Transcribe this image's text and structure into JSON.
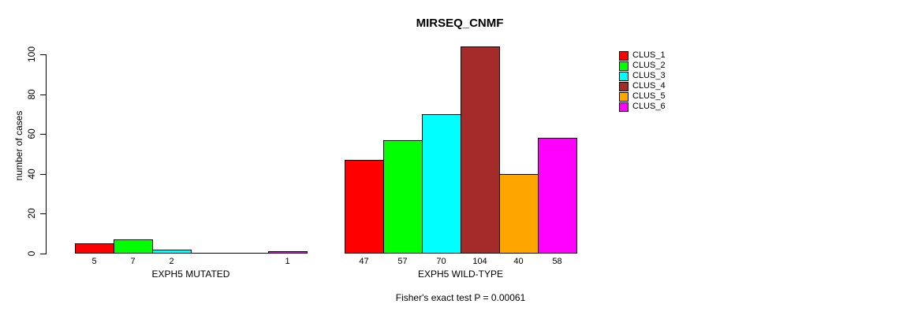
{
  "chart_data": {
    "type": "bar",
    "title": "MIRSEQ_CNMF",
    "ylabel": "number of cases",
    "ylim": [
      0,
      100
    ],
    "yticks": [
      "0",
      "20",
      "40",
      "60",
      "80",
      "100"
    ],
    "grid": false,
    "legend_position": "top-right",
    "legend": [
      "CLUS_1",
      "CLUS_2",
      "CLUS_3",
      "CLUS_4",
      "CLUS_5",
      "CLUS_6"
    ],
    "legend_colors": [
      "#FF0000",
      "#00FF00",
      "#00FFFF",
      "#A52A2A",
      "#FFA500",
      "#FF00FF"
    ],
    "groups": [
      {
        "label": "EXPH5 MUTATED",
        "values": [
          5,
          7,
          2,
          0,
          0,
          1
        ]
      },
      {
        "label": "EXPH5 WILD-TYPE",
        "values": [
          47,
          57,
          70,
          104,
          40,
          58
        ]
      }
    ],
    "annotation": "Fisher's exact test P = 0.00061"
  }
}
